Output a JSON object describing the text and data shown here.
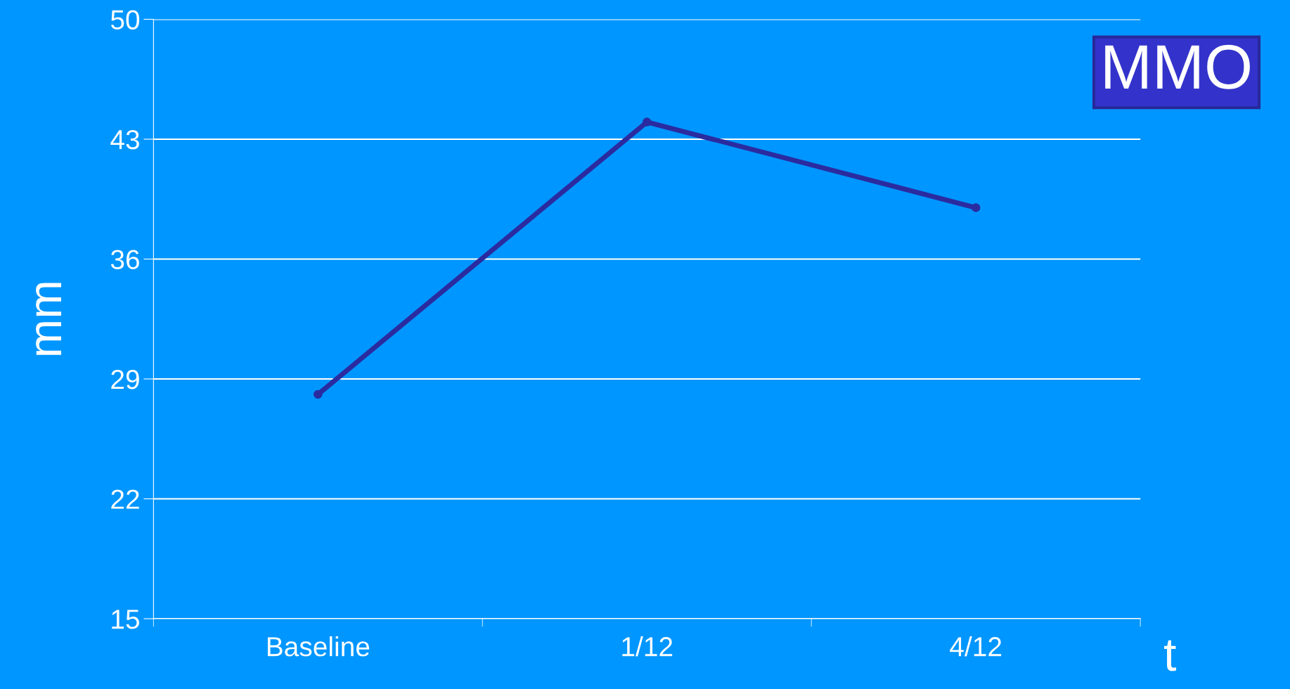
{
  "chart_data": {
    "type": "line",
    "categories": [
      "Baseline",
      "1/12",
      "4/12"
    ],
    "series": [
      {
        "color": "#2b2ba0",
        "values": [
          28.1,
          44.0,
          39.0
        ]
      }
    ],
    "ylabel": "mm",
    "xlabel": "t",
    "annotations": [
      "MMO"
    ],
    "ylim": [
      15,
      50
    ],
    "yticks": [
      15,
      22,
      29,
      36,
      43,
      50
    ],
    "grid": "y",
    "marker": "circle",
    "line_style": "solid",
    "legend": false
  }
}
